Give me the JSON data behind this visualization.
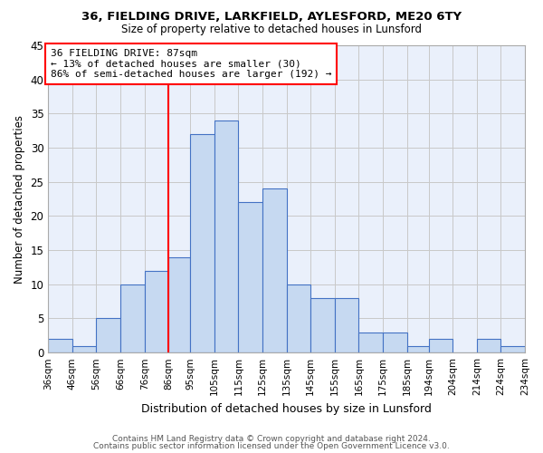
{
  "title1": "36, FIELDING DRIVE, LARKFIELD, AYLESFORD, ME20 6TY",
  "title2": "Size of property relative to detached houses in Lunsford",
  "xlabel": "Distribution of detached houses by size in Lunsford",
  "ylabel": "Number of detached properties",
  "footer1": "Contains HM Land Registry data © Crown copyright and database right 2024.",
  "footer2": "Contains public sector information licensed under the Open Government Licence v3.0.",
  "bar_labels": [
    "36sqm",
    "46sqm",
    "56sqm",
    "66sqm",
    "76sqm",
    "86sqm",
    "95sqm",
    "105sqm",
    "115sqm",
    "125sqm",
    "135sqm",
    "145sqm",
    "155sqm",
    "165sqm",
    "175sqm",
    "185sqm",
    "194sqm",
    "204sqm",
    "214sqm",
    "224sqm",
    "234sqm"
  ],
  "bar_values": [
    2,
    1,
    5,
    10,
    12,
    14,
    32,
    34,
    22,
    24,
    10,
    8,
    8,
    3,
    3,
    1,
    2,
    0,
    2,
    1
  ],
  "bar_color": "#c6d9f1",
  "bar_edge_color": "#4472c4",
  "reference_line_x": 86,
  "reference_line_color": "red",
  "annotation_title": "36 FIELDING DRIVE: 87sqm",
  "annotation_line1": "← 13% of detached houses are smaller (30)",
  "annotation_line2": "86% of semi-detached houses are larger (192) →",
  "annotation_box_color": "red",
  "ylim": [
    0,
    45
  ],
  "yticks": [
    0,
    5,
    10,
    15,
    20,
    25,
    30,
    35,
    40,
    45
  ],
  "bin_edges": [
    36,
    46,
    56,
    66,
    76,
    86,
    95,
    105,
    115,
    125,
    135,
    145,
    155,
    165,
    175,
    185,
    194,
    204,
    214,
    224,
    234
  ],
  "grid_color": "#c8c8c8",
  "bg_color": "#eaf0fb"
}
